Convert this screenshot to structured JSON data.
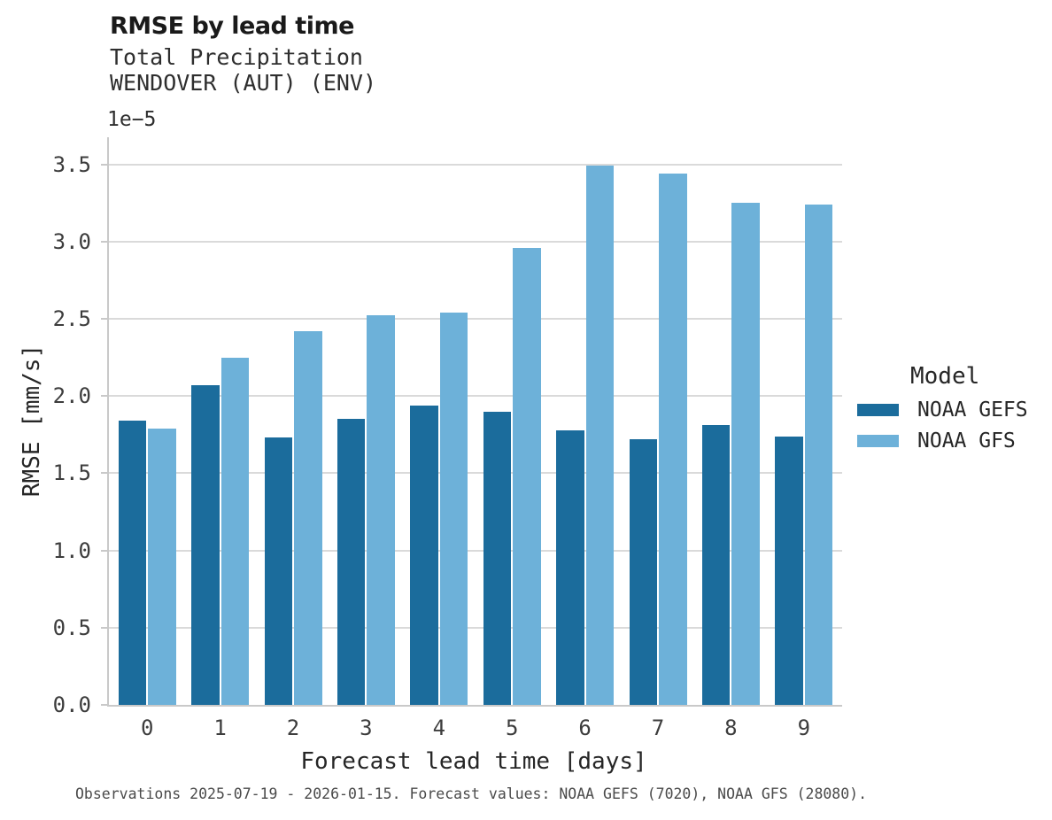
{
  "header": {
    "title": "RMSE by lead time",
    "subtitle1": "Total Precipitation",
    "subtitle2": "WENDOVER (AUT) (ENV)"
  },
  "chart_data": {
    "type": "bar",
    "title": "RMSE by lead time",
    "subtitle": [
      "Total Precipitation",
      "WENDOVER (AUT) (ENV)"
    ],
    "categories": [
      0,
      1,
      2,
      3,
      4,
      5,
      6,
      7,
      8,
      9
    ],
    "series": [
      {
        "name": "NOAA GEFS",
        "color": "#1b6c9c",
        "values": [
          1.84,
          2.07,
          1.73,
          1.85,
          1.94,
          1.9,
          1.78,
          1.72,
          1.81,
          1.74
        ]
      },
      {
        "name": "NOAA GFS",
        "color": "#6db1d9",
        "values": [
          1.79,
          2.25,
          2.42,
          2.52,
          2.54,
          2.96,
          3.49,
          3.44,
          3.25,
          3.24
        ]
      }
    ],
    "value_units": "1e-5 mm/s",
    "xlabel": "Forecast lead time [days]",
    "ylabel": "RMSE [mm/s]",
    "ylim": [
      0,
      3.675
    ],
    "yticks": [
      0.0,
      0.5,
      1.0,
      1.5,
      2.0,
      2.5,
      3.0,
      3.5
    ],
    "grid": true,
    "legend_position": "right"
  },
  "axes": {
    "offset_label": "1e−5",
    "ytick_labels": [
      "0.0",
      "0.5",
      "1.0",
      "1.5",
      "2.0",
      "2.5",
      "3.0",
      "3.5"
    ],
    "xtick_labels": [
      "0",
      "1",
      "2",
      "3",
      "4",
      "5",
      "6",
      "7",
      "8",
      "9"
    ]
  },
  "legend": {
    "title": "Model",
    "entries": [
      {
        "label": "NOAA GEFS",
        "color": "#1b6c9c"
      },
      {
        "label": "NOAA GFS",
        "color": "#6db1d9"
      }
    ]
  },
  "footer": {
    "text": "Observations 2025-07-19 - 2026-01-15. Forecast values: NOAA GEFS (7020), NOAA GFS (28080)."
  }
}
